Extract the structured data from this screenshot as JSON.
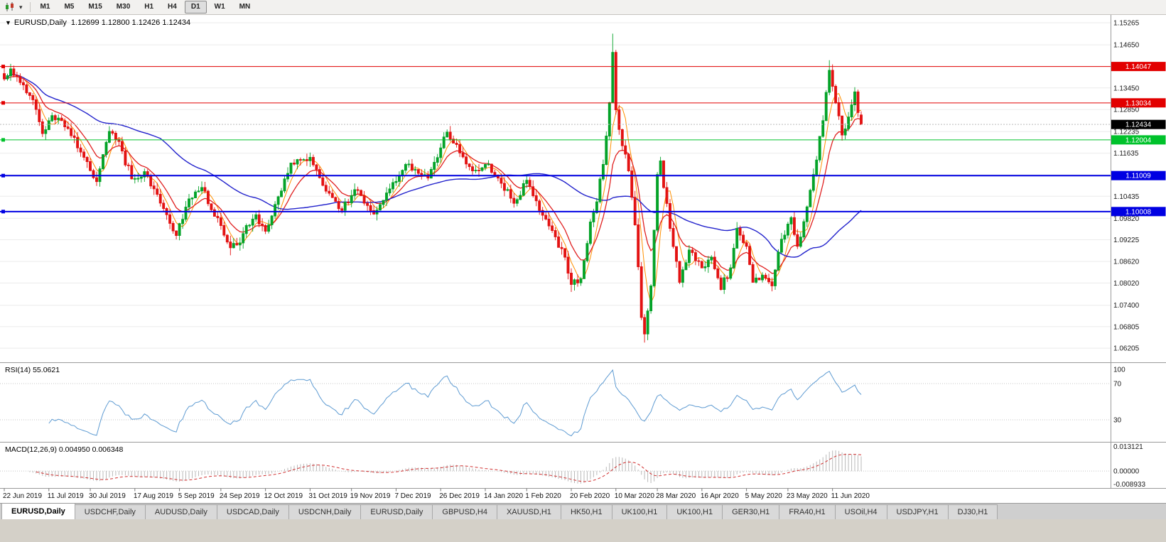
{
  "toolbar": {
    "timeframes": [
      "M1",
      "M5",
      "M15",
      "M30",
      "H1",
      "H4",
      "D1",
      "W1",
      "MN"
    ],
    "active_timeframe": "D1",
    "caret_glyph": "▾"
  },
  "chart": {
    "dropdown_glyph": "▼",
    "title": "EURUSD,Daily",
    "ohlc_text": "1.12699 1.12800 1.12426 1.12434"
  },
  "price_axis": {
    "gridlines": [
      "1.15265",
      "1.14650",
      "1.13450",
      "1.12850",
      "1.12235",
      "1.11635",
      "1.10435",
      "1.09820",
      "1.09225",
      "1.08620",
      "1.08020",
      "1.07400",
      "1.06805",
      "1.06205"
    ],
    "gridlines_unlabeled": [
      1.1405,
      1.11035
    ]
  },
  "hlines": [
    {
      "label": "1.14047",
      "value": 1.14047,
      "color": "#e20000",
      "width": 1
    },
    {
      "label": "1.13034",
      "value": 1.13034,
      "color": "#e20000",
      "width": 1
    },
    {
      "label": "1.12004",
      "value": 1.12004,
      "color": "#00c22b",
      "width": 1
    },
    {
      "label": "1.11009",
      "value": 1.11009,
      "color": "#0000e2",
      "width": 2
    },
    {
      "label": "1.10008",
      "value": 1.10008,
      "color": "#0000e2",
      "width": 2
    }
  ],
  "current_price": {
    "label": "1.12434",
    "value": 1.12434,
    "bg": "#000000",
    "fg": "#ffffff"
  },
  "rsi": {
    "header": "RSI(14) 55.0621",
    "levels": [
      {
        "label": "100",
        "value": 100
      },
      {
        "label": "70",
        "value": 70
      },
      {
        "label": "30",
        "value": 30
      }
    ],
    "line_color": "#5e9bd2"
  },
  "macd": {
    "header": "MACD(12,26,9) 0.004950 0.006348",
    "axis_labels": [
      {
        "label": "0.013121",
        "value": 0.013121
      },
      {
        "label": "0.00000",
        "value": 0
      },
      {
        "label": "-0.008933",
        "value": -0.008933
      }
    ],
    "hist_color": "#b9b9b9",
    "signal_color": "#d03030"
  },
  "tabs": [
    {
      "label": "EURUSD,Daily",
      "active": true
    },
    {
      "label": "USDCHF,Daily"
    },
    {
      "label": "AUDUSD,Daily"
    },
    {
      "label": "USDCAD,Daily"
    },
    {
      "label": "USDCNH,Daily"
    },
    {
      "label": "EURUSD,Daily"
    },
    {
      "label": "GBPUSD,H4"
    },
    {
      "label": "XAUUSD,H1"
    },
    {
      "label": "HK50,H1"
    },
    {
      "label": "UK100,H1"
    },
    {
      "label": "UK100,H1"
    },
    {
      "label": "GER30,H1"
    },
    {
      "label": "FRA40,H1"
    },
    {
      "label": "USOil,H4"
    },
    {
      "label": "USDJPY,H1"
    },
    {
      "label": "DJ30,H1"
    }
  ],
  "chart_data": {
    "type": "candlestick",
    "symbol": "EURUSD",
    "timeframe": "Daily",
    "title": "EURUSD,Daily",
    "visible_price_range": [
      1.0585,
      1.1545
    ],
    "candles_count": 270,
    "colors": {
      "up": "#05a329",
      "down": "#e31212",
      "ma_fast": "#ff9000",
      "ma_mid": "#e02020",
      "ma_slow": "#2222cc"
    },
    "x_tick_labels": [
      "22 Jun 2019",
      "11 Jul 2019",
      "30 Jul 2019",
      "17 Aug 2019",
      "5 Sep 2019",
      "24 Sep 2019",
      "12 Oct 2019",
      "31 Oct 2019",
      "19 Nov 2019",
      "7 Dec 2019",
      "26 Dec 2019",
      "14 Jan 2020",
      "1 Feb 2020",
      "20 Feb 2020",
      "10 Mar 2020",
      "28 Mar 2020",
      "16 Apr 2020",
      "5 May 2020",
      "23 May 2020",
      "11 Jun 2020"
    ],
    "anchors": [
      [
        0,
        1.137
      ],
      [
        2,
        1.1398
      ],
      [
        5,
        1.136
      ],
      [
        9,
        1.1312
      ],
      [
        12,
        1.1218
      ],
      [
        15,
        1.1268
      ],
      [
        20,
        1.1232
      ],
      [
        25,
        1.1152
      ],
      [
        29,
        1.1084
      ],
      [
        33,
        1.1224
      ],
      [
        36,
        1.1196
      ],
      [
        40,
        1.1092
      ],
      [
        44,
        1.1112
      ],
      [
        47,
        1.1064
      ],
      [
        51,
        1.0992
      ],
      [
        54,
        1.0934
      ],
      [
        58,
        1.1036
      ],
      [
        62,
        1.1068
      ],
      [
        65,
        1.1006
      ],
      [
        68,
        1.0962
      ],
      [
        71,
        1.09
      ],
      [
        73,
        1.0908
      ],
      [
        76,
        1.0962
      ],
      [
        79,
        1.0992
      ],
      [
        82,
        1.0946
      ],
      [
        86,
        1.1042
      ],
      [
        90,
        1.1136
      ],
      [
        96,
        1.1152
      ],
      [
        100,
        1.1074
      ],
      [
        103,
        1.104
      ],
      [
        106,
        1.1004
      ],
      [
        110,
        1.1062
      ],
      [
        113,
        1.1024
      ],
      [
        116,
        1.0994
      ],
      [
        121,
        1.1064
      ],
      [
        126,
        1.1132
      ],
      [
        129,
        1.1118
      ],
      [
        133,
        1.1094
      ],
      [
        137,
        1.1178
      ],
      [
        139,
        1.1222
      ],
      [
        143,
        1.1164
      ],
      [
        147,
        1.1114
      ],
      [
        151,
        1.1132
      ],
      [
        155,
        1.1094
      ],
      [
        160,
        1.1024
      ],
      [
        164,
        1.1088
      ],
      [
        168,
        1.1004
      ],
      [
        172,
        1.0948
      ],
      [
        176,
        1.0874
      ],
      [
        178,
        1.0798
      ],
      [
        181,
        1.0814
      ],
      [
        184,
        1.0972
      ],
      [
        186,
        1.1028
      ],
      [
        188,
        1.1132
      ],
      [
        190,
        1.1304
      ],
      [
        191,
        1.1444
      ],
      [
        192,
        1.1284
      ],
      [
        194,
        1.1184
      ],
      [
        196,
        1.1114
      ],
      [
        198,
        1.0964
      ],
      [
        200,
        1.0706
      ],
      [
        201,
        1.066
      ],
      [
        203,
        1.0794
      ],
      [
        205,
        1.1104
      ],
      [
        206,
        1.1142
      ],
      [
        209,
        1.0954
      ],
      [
        212,
        1.0804
      ],
      [
        215,
        1.0894
      ],
      [
        219,
        1.0844
      ],
      [
        222,
        1.0874
      ],
      [
        225,
        1.0784
      ],
      [
        228,
        1.0844
      ],
      [
        230,
        1.0954
      ],
      [
        233,
        1.0904
      ],
      [
        235,
        1.0804
      ],
      [
        238,
        1.0824
      ],
      [
        241,
        1.0794
      ],
      [
        244,
        1.0924
      ],
      [
        247,
        1.0984
      ],
      [
        249,
        1.0904
      ],
      [
        252,
        1.1014
      ],
      [
        254,
        1.1104
      ],
      [
        257,
        1.1254
      ],
      [
        259,
        1.1394
      ],
      [
        261,
        1.1304
      ],
      [
        263,
        1.1214
      ],
      [
        265,
        1.1264
      ],
      [
        267,
        1.1334
      ],
      [
        269,
        1.12434
      ]
    ],
    "wick_overrides": [
      {
        "i": 2,
        "h": 1.1412
      },
      {
        "i": 71,
        "l": 1.0879
      },
      {
        "i": 178,
        "l": 1.0777
      },
      {
        "i": 191,
        "h": 1.1496
      },
      {
        "i": 201,
        "l": 1.0636
      },
      {
        "i": 259,
        "h": 1.1422
      }
    ],
    "last_candle": {
      "o": 1.12699,
      "h": 1.128,
      "l": 1.12426,
      "c": 1.12434
    },
    "indicators": [
      {
        "name": "RSI",
        "period": 14,
        "value": 55.0621
      },
      {
        "name": "MACD",
        "fast": 12,
        "slow": 26,
        "signal": 9,
        "value": 0.00495,
        "signal_value": 0.006348
      }
    ],
    "horizontal_levels": [
      1.14047,
      1.13034,
      1.12004,
      1.11009,
      1.10008
    ]
  }
}
